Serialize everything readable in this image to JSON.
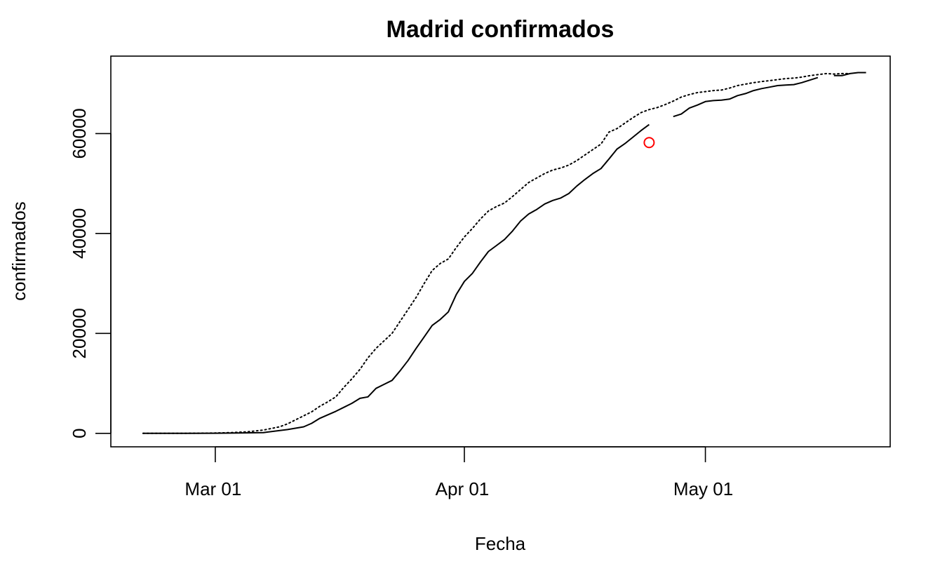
{
  "chart_data": {
    "type": "line",
    "title": "Madrid confirmados",
    "xlabel": "Fecha",
    "ylabel": "confirmados",
    "x_range": [
      "2020-02-17",
      "2020-05-24"
    ],
    "ylim": [
      -2700,
      75500
    ],
    "x_ticks": [
      {
        "date": "2020-03-01",
        "label": "Mar 01"
      },
      {
        "date": "2020-04-01",
        "label": "Apr 01"
      },
      {
        "date": "2020-05-01",
        "label": "May 01"
      }
    ],
    "y_ticks": [
      {
        "value": 0,
        "label": "0"
      },
      {
        "value": 20000,
        "label": "20000"
      },
      {
        "value": 40000,
        "label": "40000"
      },
      {
        "value": 60000,
        "label": "60000"
      }
    ],
    "grid": false,
    "series": [
      {
        "style": "solid",
        "color": "#000000",
        "segments": [
          [
            [
              "2020-02-21",
              0
            ],
            [
              "2020-02-24",
              0
            ],
            [
              "2020-02-27",
              5
            ],
            [
              "2020-03-01",
              20
            ],
            [
              "2020-03-04",
              60
            ],
            [
              "2020-03-07",
              150
            ],
            [
              "2020-03-10",
              750
            ],
            [
              "2020-03-12",
              1300
            ],
            [
              "2020-03-13",
              2000
            ],
            [
              "2020-03-14",
              3000
            ],
            [
              "2020-03-15",
              3700
            ],
            [
              "2020-03-16",
              4400
            ],
            [
              "2020-03-17",
              5200
            ],
            [
              "2020-03-18",
              6000
            ],
            [
              "2020-03-19",
              7000
            ],
            [
              "2020-03-20",
              7300
            ],
            [
              "2020-03-21",
              9000
            ],
            [
              "2020-03-22",
              9800
            ],
            [
              "2020-03-23",
              10600
            ],
            [
              "2020-03-24",
              12500
            ],
            [
              "2020-03-25",
              14600
            ],
            [
              "2020-03-26",
              17000
            ],
            [
              "2020-03-27",
              19300
            ],
            [
              "2020-03-28",
              21600
            ],
            [
              "2020-03-29",
              22800
            ],
            [
              "2020-03-30",
              24300
            ],
            [
              "2020-03-31",
              27800
            ],
            [
              "2020-04-01",
              30400
            ],
            [
              "2020-04-02",
              32000
            ],
            [
              "2020-04-03",
              34300
            ],
            [
              "2020-04-04",
              36400
            ],
            [
              "2020-04-05",
              37600
            ],
            [
              "2020-04-06",
              38800
            ],
            [
              "2020-04-07",
              40500
            ],
            [
              "2020-04-08",
              42500
            ],
            [
              "2020-04-09",
              43900
            ],
            [
              "2020-04-10",
              44800
            ],
            [
              "2020-04-11",
              45900
            ],
            [
              "2020-04-12",
              46600
            ],
            [
              "2020-04-13",
              47100
            ],
            [
              "2020-04-14",
              48000
            ],
            [
              "2020-04-15",
              49500
            ],
            [
              "2020-04-16",
              50800
            ],
            [
              "2020-04-17",
              52000
            ],
            [
              "2020-04-18",
              53000
            ],
            [
              "2020-04-19",
              54900
            ],
            [
              "2020-04-20",
              56900
            ],
            [
              "2020-04-21",
              58000
            ],
            [
              "2020-04-22",
              59300
            ],
            [
              "2020-04-23",
              60600
            ],
            [
              "2020-04-24",
              61800
            ]
          ],
          [
            [
              "2020-04-27",
              63400
            ],
            [
              "2020-04-28",
              63900
            ],
            [
              "2020-04-29",
              65100
            ],
            [
              "2020-04-30",
              65700
            ],
            [
              "2020-05-01",
              66400
            ],
            [
              "2020-05-02",
              66600
            ],
            [
              "2020-05-03",
              66700
            ],
            [
              "2020-05-04",
              66900
            ],
            [
              "2020-05-05",
              67600
            ],
            [
              "2020-05-06",
              68000
            ],
            [
              "2020-05-07",
              68600
            ],
            [
              "2020-05-08",
              69000
            ],
            [
              "2020-05-09",
              69300
            ],
            [
              "2020-05-10",
              69600
            ],
            [
              "2020-05-11",
              69700
            ],
            [
              "2020-05-12",
              69800
            ],
            [
              "2020-05-13",
              70200
            ],
            [
              "2020-05-14",
              70700
            ],
            [
              "2020-05-15",
              71200
            ]
          ],
          [
            [
              "2020-05-17",
              71600
            ],
            [
              "2020-05-18",
              71600
            ],
            [
              "2020-05-19",
              72000
            ],
            [
              "2020-05-20",
              72200
            ],
            [
              "2020-05-21",
              72200
            ]
          ]
        ]
      },
      {
        "style": "dotted",
        "color": "#000000",
        "segments": [
          [
            [
              "2020-02-21",
              0
            ],
            [
              "2020-02-25",
              0
            ],
            [
              "2020-02-28",
              20
            ],
            [
              "2020-03-01",
              60
            ],
            [
              "2020-03-03",
              150
            ],
            [
              "2020-03-05",
              300
            ],
            [
              "2020-03-07",
              650
            ],
            [
              "2020-03-09",
              1300
            ],
            [
              "2020-03-10",
              1900
            ],
            [
              "2020-03-11",
              2700
            ],
            [
              "2020-03-12",
              3500
            ],
            [
              "2020-03-13",
              4300
            ],
            [
              "2020-03-14",
              5400
            ],
            [
              "2020-03-15",
              6300
            ],
            [
              "2020-03-16",
              7300
            ],
            [
              "2020-03-17",
              9200
            ],
            [
              "2020-03-18",
              10900
            ],
            [
              "2020-03-19",
              12800
            ],
            [
              "2020-03-20",
              15100
            ],
            [
              "2020-03-21",
              17000
            ],
            [
              "2020-03-22",
              18500
            ],
            [
              "2020-03-23",
              20000
            ],
            [
              "2020-03-24",
              22400
            ],
            [
              "2020-03-25",
              24800
            ],
            [
              "2020-03-26",
              27200
            ],
            [
              "2020-03-27",
              30000
            ],
            [
              "2020-03-28",
              32600
            ],
            [
              "2020-03-29",
              34000
            ],
            [
              "2020-03-30",
              34900
            ],
            [
              "2020-03-31",
              37200
            ],
            [
              "2020-04-01",
              39300
            ],
            [
              "2020-04-02",
              41000
            ],
            [
              "2020-04-03",
              42900
            ],
            [
              "2020-04-04",
              44500
            ],
            [
              "2020-04-05",
              45400
            ],
            [
              "2020-04-06",
              46100
            ],
            [
              "2020-04-07",
              47400
            ],
            [
              "2020-04-08",
              48800
            ],
            [
              "2020-04-09",
              50200
            ],
            [
              "2020-04-10",
              51100
            ],
            [
              "2020-04-11",
              52000
            ],
            [
              "2020-04-12",
              52700
            ],
            [
              "2020-04-13",
              53100
            ],
            [
              "2020-04-14",
              53700
            ],
            [
              "2020-04-15",
              54600
            ],
            [
              "2020-04-16",
              55700
            ],
            [
              "2020-04-17",
              56800
            ],
            [
              "2020-04-18",
              57900
            ],
            [
              "2020-04-19",
              60300
            ],
            [
              "2020-04-20",
              61000
            ],
            [
              "2020-04-21",
              62100
            ],
            [
              "2020-04-22",
              63200
            ],
            [
              "2020-04-23",
              64200
            ],
            [
              "2020-04-24",
              64800
            ],
            [
              "2020-04-25",
              65200
            ],
            [
              "2020-04-26",
              65800
            ],
            [
              "2020-04-27",
              66500
            ],
            [
              "2020-04-28",
              67300
            ],
            [
              "2020-04-29",
              67800
            ],
            [
              "2020-04-30",
              68200
            ],
            [
              "2020-05-01",
              68400
            ],
            [
              "2020-05-02",
              68600
            ],
            [
              "2020-05-03",
              68700
            ],
            [
              "2020-05-04",
              69100
            ],
            [
              "2020-05-05",
              69600
            ],
            [
              "2020-05-06",
              69900
            ],
            [
              "2020-05-07",
              70200
            ],
            [
              "2020-05-08",
              70400
            ],
            [
              "2020-05-09",
              70600
            ],
            [
              "2020-05-10",
              70800
            ],
            [
              "2020-05-11",
              71000
            ],
            [
              "2020-05-12",
              71100
            ],
            [
              "2020-05-13",
              71300
            ],
            [
              "2020-05-14",
              71600
            ],
            [
              "2020-05-15",
              71800
            ],
            [
              "2020-05-16",
              72000
            ],
            [
              "2020-05-17",
              71900
            ],
            [
              "2020-05-18",
              72000
            ],
            [
              "2020-05-19",
              72000
            ]
          ]
        ]
      }
    ],
    "points": [
      {
        "date": "2020-04-24",
        "value": 58200,
        "color": "#ff0000",
        "shape": "open-circle"
      }
    ]
  }
}
